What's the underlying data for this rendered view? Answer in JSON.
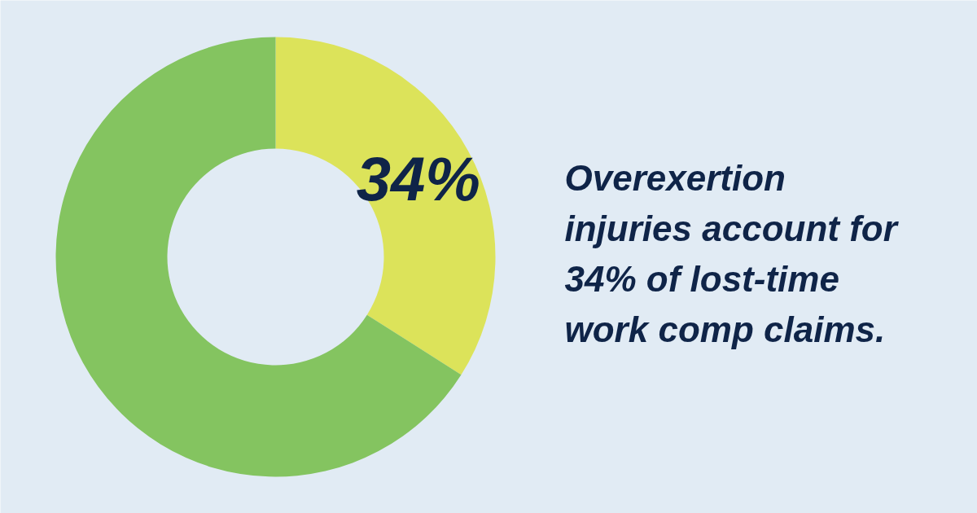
{
  "chart_data": {
    "type": "donut",
    "title": "Overexertion injuries account for 34% of lost-time work comp claims.",
    "categories": [
      null,
      null
    ],
    "values": [
      34,
      66
    ],
    "colors": [
      "#dce35a",
      "#84c460"
    ],
    "value_labels": [
      "34%",
      null
    ]
  }
}
